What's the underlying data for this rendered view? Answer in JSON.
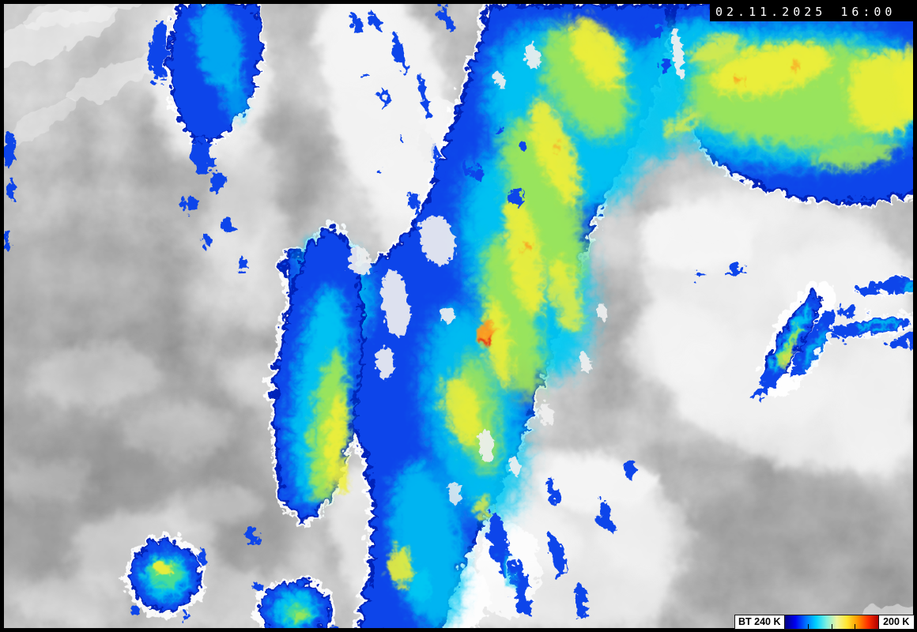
{
  "scene": {
    "description": "Color-enhanced infrared weather-satellite image: warm clouds in grayscale, cold cloud tops (brightness temperature below 240 K) enhanced from blue through cyan, green and yellow to red; a large diagonal cold-cloud band crosses from bottom center to the upper right corner"
  },
  "overlay": {
    "timestamp": {
      "date": "02.11.2025",
      "time": "16:00"
    },
    "colorbar": {
      "label_left": "BT 240 K",
      "label_right": "200 K",
      "units": "K",
      "range_start": 240,
      "range_end": 200,
      "gradient_stops": [
        "#000080",
        "#0000f0",
        "#0070ff",
        "#00d0ff",
        "#7df0e0",
        "#eef6a0",
        "#ffe42e",
        "#ff9800",
        "#ff3000",
        "#b00000"
      ],
      "tick_positions_pct": [
        25,
        50,
        75
      ]
    }
  },
  "palette": {
    "frame": "#000000",
    "gray_base": "#8e8e8e",
    "gray_dark": "#6f6f6f",
    "white_cloud": "#f4f4f4",
    "blue_deep": "#0020b8",
    "blue": "#0b44ea",
    "cyan": "#00c8f2",
    "green": "#52e08a",
    "yellow_green": "#a9e84c",
    "yellow": "#eeee38",
    "orange": "#ff9420",
    "red": "#e62c12",
    "timestamp_bg": "#000000",
    "timestamp_fg": "#ffffff",
    "legend_bg": "#ffffff",
    "legend_fg": "#000000"
  }
}
